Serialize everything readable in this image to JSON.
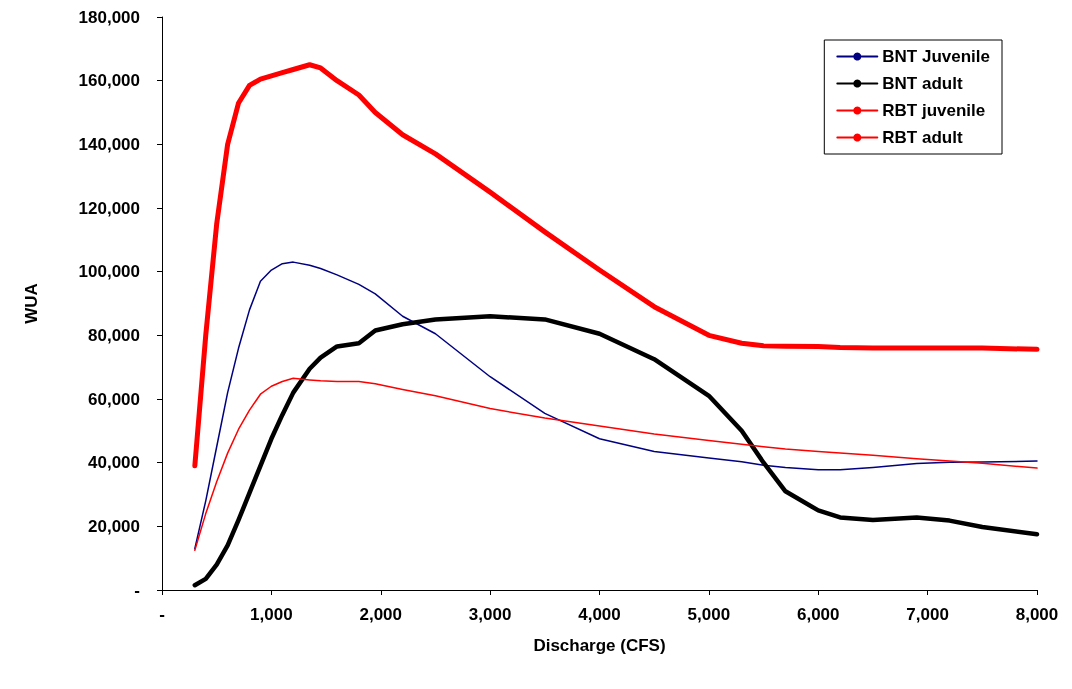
{
  "chart_data": {
    "type": "line",
    "xlabel": "Discharge (CFS)",
    "ylabel": "WUA",
    "x": [
      300,
      400,
      500,
      600,
      700,
      800,
      900,
      1000,
      1100,
      1200,
      1350,
      1450,
      1600,
      1800,
      1950,
      2200,
      2500,
      3000,
      3500,
      4000,
      4500,
      5000,
      5300,
      5500,
      5700,
      6000,
      6200,
      6500,
      6900,
      7200,
      7500,
      8000
    ],
    "series": [
      {
        "name": "BNT Juvenile",
        "color": "#000080",
        "values": [
          13000,
          28000,
          45000,
          62000,
          76000,
          88000,
          97000,
          100500,
          102500,
          103000,
          102000,
          101000,
          99000,
          96000,
          93000,
          86000,
          80500,
          67000,
          55500,
          47500,
          43500,
          41500,
          40300,
          39200,
          38500,
          37800,
          37800,
          38500,
          39700,
          40100,
          40200,
          40500
        ]
      },
      {
        "name": "BNT adult",
        "color": "#000000",
        "values": [
          1500,
          3500,
          8000,
          14000,
          22000,
          30500,
          39000,
          47500,
          55000,
          62000,
          69500,
          73000,
          76500,
          77500,
          81500,
          83500,
          85000,
          86000,
          85000,
          80500,
          72500,
          61000,
          50000,
          40000,
          31000,
          25000,
          22800,
          22000,
          22800,
          21800,
          19800,
          17500
        ]
      },
      {
        "name": "RBT juvenile",
        "color": "#ff0000",
        "values": [
          12500,
          24000,
          34000,
          43000,
          50500,
          56500,
          61500,
          64000,
          65500,
          66500,
          66000,
          65700,
          65500,
          65500,
          64800,
          63000,
          61000,
          57000,
          54000,
          51500,
          49000,
          47000,
          45800,
          45000,
          44300,
          43500,
          43000,
          42300,
          41200,
          40500,
          39800,
          38300
        ]
      },
      {
        "name": "RBT adult",
        "color": "#ff0000",
        "values": [
          39000,
          80000,
          115000,
          140000,
          153000,
          158500,
          160500,
          161500,
          162500,
          163500,
          165000,
          164000,
          160000,
          155500,
          150000,
          143000,
          137000,
          125000,
          112500,
          100500,
          89000,
          80000,
          77500,
          76700,
          76600,
          76500,
          76200,
          76000,
          76000,
          76000,
          76000,
          75600
        ]
      }
    ],
    "xlim": [
      0,
      8000
    ],
    "xticks": [
      {
        "value": 0,
        "label": "-"
      },
      {
        "value": 1000,
        "label": "1,000"
      },
      {
        "value": 2000,
        "label": "2,000"
      },
      {
        "value": 3000,
        "label": "3,000"
      },
      {
        "value": 4000,
        "label": "4,000"
      },
      {
        "value": 5000,
        "label": "5,000"
      },
      {
        "value": 6000,
        "label": "6,000"
      },
      {
        "value": 7000,
        "label": "7,000"
      },
      {
        "value": 8000,
        "label": "8,000"
      }
    ],
    "ylim": [
      0,
      180000
    ],
    "yticks": [
      {
        "value": 0,
        "label": "-"
      },
      {
        "value": 20000,
        "label": "20,000"
      },
      {
        "value": 40000,
        "label": "40,000"
      },
      {
        "value": 60000,
        "label": "60,000"
      },
      {
        "value": 80000,
        "label": "80,000"
      },
      {
        "value": 100000,
        "label": "100,000"
      },
      {
        "value": 120000,
        "label": "120,000"
      },
      {
        "value": 140000,
        "label": "140,000"
      },
      {
        "value": 160000,
        "label": "160,000"
      },
      {
        "value": 180000,
        "label": "180,000"
      }
    ],
    "grid": false,
    "legend": "top right",
    "marker": "none",
    "line_style": "solid"
  }
}
